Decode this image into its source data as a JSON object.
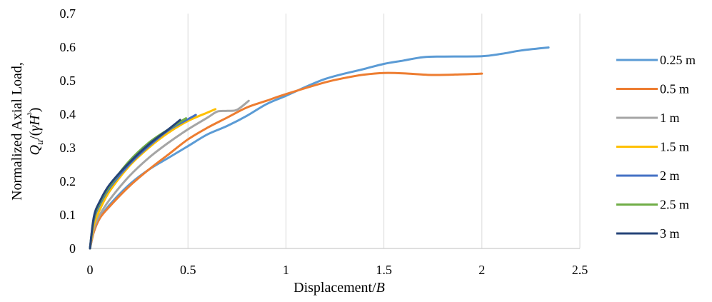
{
  "chart_data": {
    "type": "line",
    "xlabel": "Displacement/B",
    "ylabel_line1": "Normalized Axial Load,",
    "ylabel_line2": "Qu/(γH³)",
    "xlim": [
      0,
      2.5
    ],
    "ylim": [
      0,
      0.7
    ],
    "xticks": [
      "0",
      "0.5",
      "1",
      "1.5",
      "2",
      "2.5"
    ],
    "yticks": [
      "0",
      "0.1",
      "0.2",
      "0.3",
      "0.4",
      "0.5",
      "0.6",
      "0.7"
    ],
    "grid": "vertical",
    "legend_position": "right",
    "series": [
      {
        "name": "0.25 m",
        "color": "#5B9BD5",
        "points": [
          [
            0,
            0
          ],
          [
            0.02,
            0.05
          ],
          [
            0.05,
            0.09
          ],
          [
            0.1,
            0.13
          ],
          [
            0.2,
            0.19
          ],
          [
            0.3,
            0.235
          ],
          [
            0.4,
            0.27
          ],
          [
            0.5,
            0.305
          ],
          [
            0.6,
            0.34
          ],
          [
            0.7,
            0.365
          ],
          [
            0.8,
            0.395
          ],
          [
            0.9,
            0.43
          ],
          [
            1.0,
            0.455
          ],
          [
            1.2,
            0.505
          ],
          [
            1.4,
            0.535
          ],
          [
            1.5,
            0.55
          ],
          [
            1.6,
            0.56
          ],
          [
            1.7,
            0.57
          ],
          [
            1.8,
            0.572
          ],
          [
            2.0,
            0.573
          ],
          [
            2.1,
            0.58
          ],
          [
            2.2,
            0.59
          ],
          [
            2.34,
            0.599
          ]
        ]
      },
      {
        "name": "0.5 m",
        "color": "#ED7D31",
        "points": [
          [
            0,
            0
          ],
          [
            0.02,
            0.05
          ],
          [
            0.05,
            0.09
          ],
          [
            0.1,
            0.125
          ],
          [
            0.2,
            0.185
          ],
          [
            0.3,
            0.235
          ],
          [
            0.4,
            0.28
          ],
          [
            0.5,
            0.325
          ],
          [
            0.6,
            0.36
          ],
          [
            0.7,
            0.39
          ],
          [
            0.8,
            0.42
          ],
          [
            0.9,
            0.44
          ],
          [
            1.0,
            0.46
          ],
          [
            1.2,
            0.495
          ],
          [
            1.3,
            0.508
          ],
          [
            1.4,
            0.518
          ],
          [
            1.5,
            0.523
          ],
          [
            1.6,
            0.522
          ],
          [
            1.75,
            0.517
          ],
          [
            1.9,
            0.519
          ],
          [
            2.0,
            0.521
          ]
        ]
      },
      {
        "name": "1 m",
        "color": "#A5A5A5",
        "points": [
          [
            0,
            0
          ],
          [
            0.02,
            0.06
          ],
          [
            0.05,
            0.1
          ],
          [
            0.1,
            0.145
          ],
          [
            0.2,
            0.215
          ],
          [
            0.3,
            0.27
          ],
          [
            0.4,
            0.315
          ],
          [
            0.5,
            0.355
          ],
          [
            0.6,
            0.39
          ],
          [
            0.65,
            0.408
          ],
          [
            0.7,
            0.41
          ],
          [
            0.75,
            0.413
          ],
          [
            0.81,
            0.44
          ]
        ]
      },
      {
        "name": "1.5 m",
        "color": "#FFC000",
        "points": [
          [
            0,
            0
          ],
          [
            0.02,
            0.07
          ],
          [
            0.05,
            0.115
          ],
          [
            0.1,
            0.17
          ],
          [
            0.2,
            0.245
          ],
          [
            0.3,
            0.3
          ],
          [
            0.4,
            0.345
          ],
          [
            0.5,
            0.38
          ],
          [
            0.6,
            0.405
          ],
          [
            0.64,
            0.415
          ]
        ]
      },
      {
        "name": "2 m",
        "color": "#4472C4",
        "points": [
          [
            0,
            0
          ],
          [
            0.02,
            0.085
          ],
          [
            0.05,
            0.13
          ],
          [
            0.1,
            0.18
          ],
          [
            0.2,
            0.25
          ],
          [
            0.3,
            0.305
          ],
          [
            0.4,
            0.352
          ],
          [
            0.5,
            0.385
          ],
          [
            0.54,
            0.398
          ]
        ]
      },
      {
        "name": "2.5 m",
        "color": "#70AD47",
        "points": [
          [
            0,
            0
          ],
          [
            0.02,
            0.09
          ],
          [
            0.05,
            0.135
          ],
          [
            0.1,
            0.185
          ],
          [
            0.2,
            0.26
          ],
          [
            0.3,
            0.315
          ],
          [
            0.4,
            0.355
          ],
          [
            0.49,
            0.388
          ]
        ]
      },
      {
        "name": "3 m",
        "color": "#264478",
        "points": [
          [
            0,
            0
          ],
          [
            0.02,
            0.095
          ],
          [
            0.05,
            0.14
          ],
          [
            0.1,
            0.19
          ],
          [
            0.2,
            0.255
          ],
          [
            0.3,
            0.31
          ],
          [
            0.4,
            0.355
          ],
          [
            0.46,
            0.383
          ]
        ]
      }
    ]
  }
}
